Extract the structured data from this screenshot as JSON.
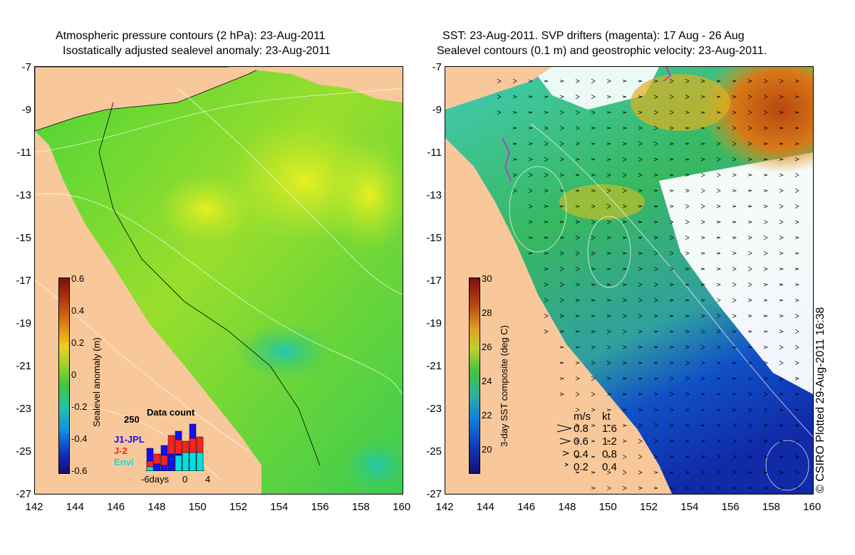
{
  "left_panel": {
    "title_line1": "Atmospheric pressure contours (2 hPa): 23-Aug-2011",
    "title_line2": "Isostatically adjusted sealevel anomaly: 23-Aug-2011",
    "colorbar": {
      "label": "Sealevel anomaly (m)",
      "ticks": [
        "0.6",
        "0.4",
        "0.2",
        "0",
        "-0.2",
        "-0.4",
        "-0.6"
      ]
    },
    "data_count": {
      "title": "Data count",
      "ymax_label": "250",
      "series": [
        "J1-JPL",
        "J-2",
        "Envi"
      ],
      "series_colors": [
        "#1010ff",
        "#ff2020",
        "#00e0e0"
      ],
      "x_ticks": [
        "-6days",
        "0",
        "4"
      ]
    }
  },
  "right_panel": {
    "title_line1": "SST: 23-Aug-2011. SVP drifters (magenta): 17 Aug - 26 Aug",
    "title_line2": "Sealevel contours (0.1 m) and geostrophic velocity: 23-Aug-2011.",
    "colorbar": {
      "label": "3-day SST composite (deg C)",
      "ticks": [
        "30",
        "28",
        "26",
        "24",
        "22",
        "20"
      ]
    },
    "velocity_legend": {
      "header_ms": "m/s",
      "header_kt": "kt",
      "rows": [
        {
          "ms": "0.8",
          "kt": "1.6"
        },
        {
          "ms": "0.6",
          "kt": "1.2"
        },
        {
          "ms": "0.4",
          "kt": "0.8"
        },
        {
          "ms": "0.2",
          "kt": "0.4"
        }
      ]
    }
  },
  "axes": {
    "lat_ticks": [
      "-7",
      "-9",
      "-11",
      "-13",
      "-15",
      "-17",
      "-19",
      "-21",
      "-23",
      "-25",
      "-27"
    ],
    "lon_ticks": [
      "142",
      "144",
      "146",
      "148",
      "150",
      "152",
      "154",
      "156",
      "158",
      "160"
    ]
  },
  "credit": "© CSIRO Plotted 29-Aug-2011 16:38",
  "colors": {
    "land": "#f9c89a",
    "sla_ocean": "#48d232",
    "warm_sst": "#c85010",
    "cool_sst": "#1030b0"
  }
}
